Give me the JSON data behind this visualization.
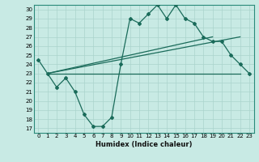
{
  "xlabel": "Humidex (Indice chaleur)",
  "bg_color": "#c8eae4",
  "grid_color": "#b0ddd6",
  "line_color": "#1a6b5a",
  "xlim": [
    -0.5,
    23.5
  ],
  "ylim": [
    16.5,
    30.5
  ],
  "xticks": [
    0,
    1,
    2,
    3,
    4,
    5,
    6,
    7,
    8,
    9,
    10,
    11,
    12,
    13,
    14,
    15,
    16,
    17,
    18,
    19,
    20,
    21,
    22,
    23
  ],
  "yticks": [
    17,
    18,
    19,
    20,
    21,
    22,
    23,
    24,
    25,
    26,
    27,
    28,
    29,
    30
  ],
  "curve1_x": [
    0,
    1,
    2,
    3,
    4,
    5,
    6,
    7,
    8,
    9,
    10,
    11,
    12,
    13,
    14,
    15,
    16,
    17,
    18,
    19,
    20,
    21,
    22,
    23
  ],
  "curve1_y": [
    24.5,
    23.0,
    21.5,
    22.5,
    21.0,
    18.5,
    17.2,
    17.2,
    18.2,
    24.0,
    29.0,
    28.5,
    29.5,
    30.5,
    29.0,
    30.5,
    29.0,
    28.5,
    27.0,
    26.5,
    26.5,
    25.0,
    24.0,
    23.0
  ],
  "curve2_x": [
    1,
    22
  ],
  "curve2_y": [
    23.0,
    23.0
  ],
  "curve3_x": [
    1,
    22
  ],
  "curve3_y": [
    23.0,
    27.0
  ],
  "curve4_x": [
    1,
    19
  ],
  "curve4_y": [
    23.0,
    27.0
  ]
}
